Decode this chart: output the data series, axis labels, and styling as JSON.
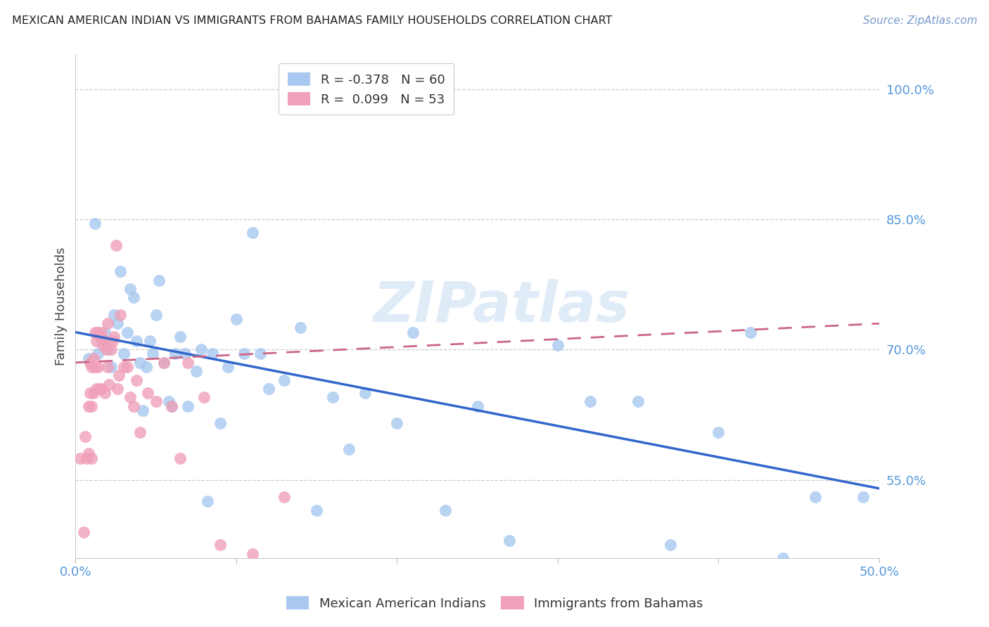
{
  "title": "MEXICAN AMERICAN INDIAN VS IMMIGRANTS FROM BAHAMAS FAMILY HOUSEHOLDS CORRELATION CHART",
  "source": "Source: ZipAtlas.com",
  "ylabel": "Family Households",
  "xmin": 0.0,
  "xmax": 0.5,
  "ymin": 0.46,
  "ymax": 1.04,
  "legend_blue_R": "R = -0.378",
  "legend_blue_N": "N = 60",
  "legend_pink_R": "R =  0.099",
  "legend_pink_N": "N = 53",
  "blue_color": "#A8C8F0",
  "pink_color": "#F0A0B8",
  "blue_line_color": "#3366CC",
  "pink_line_color": "#CC6688",
  "watermark": "ZIPatlas",
  "ytick_vals": [
    0.55,
    0.7,
    0.85,
    1.0
  ],
  "ytick_labels": [
    "55.0%",
    "70.0%",
    "85.0%",
    "100.0%"
  ],
  "blue_points_x": [
    0.008,
    0.012,
    0.014,
    0.016,
    0.018,
    0.02,
    0.022,
    0.024,
    0.026,
    0.028,
    0.03,
    0.032,
    0.034,
    0.036,
    0.038,
    0.04,
    0.042,
    0.044,
    0.046,
    0.048,
    0.05,
    0.052,
    0.055,
    0.058,
    0.06,
    0.062,
    0.065,
    0.068,
    0.07,
    0.075,
    0.078,
    0.082,
    0.085,
    0.09,
    0.095,
    0.1,
    0.105,
    0.11,
    0.115,
    0.12,
    0.13,
    0.14,
    0.15,
    0.16,
    0.17,
    0.18,
    0.2,
    0.21,
    0.23,
    0.25,
    0.27,
    0.3,
    0.32,
    0.35,
    0.37,
    0.4,
    0.42,
    0.44,
    0.46,
    0.49
  ],
  "blue_points_y": [
    0.69,
    0.845,
    0.695,
    0.71,
    0.72,
    0.7,
    0.68,
    0.74,
    0.73,
    0.79,
    0.695,
    0.72,
    0.77,
    0.76,
    0.71,
    0.685,
    0.63,
    0.68,
    0.71,
    0.695,
    0.74,
    0.78,
    0.685,
    0.64,
    0.635,
    0.695,
    0.715,
    0.695,
    0.635,
    0.675,
    0.7,
    0.525,
    0.695,
    0.615,
    0.68,
    0.735,
    0.695,
    0.835,
    0.695,
    0.655,
    0.665,
    0.725,
    0.515,
    0.645,
    0.585,
    0.65,
    0.615,
    0.72,
    0.515,
    0.635,
    0.48,
    0.705,
    0.64,
    0.64,
    0.475,
    0.605,
    0.72,
    0.46,
    0.53,
    0.53
  ],
  "pink_points_x": [
    0.003,
    0.005,
    0.006,
    0.007,
    0.008,
    0.008,
    0.009,
    0.009,
    0.01,
    0.01,
    0.01,
    0.011,
    0.011,
    0.012,
    0.012,
    0.013,
    0.013,
    0.014,
    0.014,
    0.015,
    0.015,
    0.016,
    0.016,
    0.017,
    0.018,
    0.018,
    0.019,
    0.02,
    0.02,
    0.021,
    0.022,
    0.023,
    0.024,
    0.025,
    0.026,
    0.027,
    0.028,
    0.03,
    0.032,
    0.034,
    0.036,
    0.038,
    0.04,
    0.045,
    0.05,
    0.055,
    0.06,
    0.065,
    0.07,
    0.08,
    0.09,
    0.11,
    0.13
  ],
  "pink_points_y": [
    0.575,
    0.49,
    0.6,
    0.575,
    0.635,
    0.58,
    0.65,
    0.685,
    0.575,
    0.635,
    0.68,
    0.65,
    0.69,
    0.72,
    0.68,
    0.655,
    0.71,
    0.72,
    0.68,
    0.655,
    0.715,
    0.72,
    0.655,
    0.705,
    0.71,
    0.65,
    0.7,
    0.73,
    0.68,
    0.66,
    0.7,
    0.71,
    0.715,
    0.82,
    0.655,
    0.67,
    0.74,
    0.68,
    0.68,
    0.645,
    0.635,
    0.665,
    0.605,
    0.65,
    0.64,
    0.685,
    0.635,
    0.575,
    0.685,
    0.645,
    0.475,
    0.465,
    0.53
  ]
}
